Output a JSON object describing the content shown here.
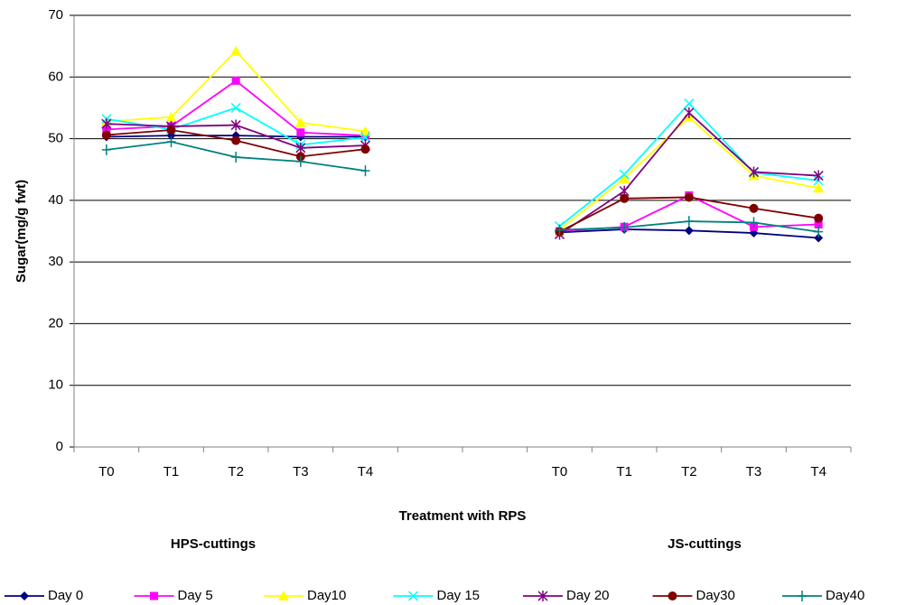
{
  "chart_data": {
    "type": "line",
    "y_label": "Sugar(mg/g fwt)",
    "x_label": "Treatment with RPS",
    "group_labels": [
      "HPS-cuttings",
      "JS-cuttings"
    ],
    "categories": [
      "T0",
      "T1",
      "T2",
      "T3",
      "T4",
      null,
      null,
      "T0",
      "T1",
      "T2",
      "T3",
      "T4"
    ],
    "ylim": [
      0,
      70
    ],
    "yticks": [
      0,
      10,
      20,
      30,
      40,
      50,
      60,
      70
    ],
    "grid": true,
    "legend": "bottom",
    "series": [
      {
        "name": "Day 0",
        "color": "#000080",
        "marker": "diamond",
        "values": [
          50.3,
          50.5,
          50.5,
          50.3,
          50.3,
          null,
          null,
          34.8,
          35.3,
          35.1,
          34.7,
          33.9
        ]
      },
      {
        "name": "Day 5",
        "color": "#ff00ff",
        "marker": "square",
        "values": [
          51.5,
          52,
          59.4,
          51,
          50.5,
          null,
          null,
          35,
          35.7,
          40.8,
          35.7,
          36.1
        ]
      },
      {
        "name": "Day10",
        "color": "#ffff00",
        "marker": "triangle",
        "values": [
          52.8,
          53.5,
          64.2,
          52.6,
          51.2,
          null,
          null,
          35.2,
          43.5,
          53.5,
          44,
          42
        ]
      },
      {
        "name": "Day 15",
        "color": "#00ffff",
        "marker": "x",
        "values": [
          53.2,
          51.5,
          55,
          49,
          50.2,
          null,
          null,
          35.8,
          44.2,
          55.7,
          44.5,
          43.2
        ]
      },
      {
        "name": "Day 20",
        "color": "#800080",
        "marker": "star",
        "values": [
          52.4,
          52,
          52.2,
          48.5,
          48.9,
          null,
          null,
          34.5,
          41.5,
          54.2,
          44.6,
          44
        ]
      },
      {
        "name": "Day30",
        "color": "#800000",
        "marker": "circle",
        "values": [
          50.6,
          51.4,
          49.7,
          47.1,
          48.3,
          null,
          null,
          34.9,
          40.3,
          40.5,
          38.7,
          37.1
        ]
      },
      {
        "name": "Day40",
        "color": "#008080",
        "marker": "plus",
        "values": [
          48.2,
          49.5,
          47,
          46.3,
          44.8,
          null,
          null,
          35.2,
          35.6,
          36.6,
          36.4,
          34.9
        ]
      }
    ]
  }
}
